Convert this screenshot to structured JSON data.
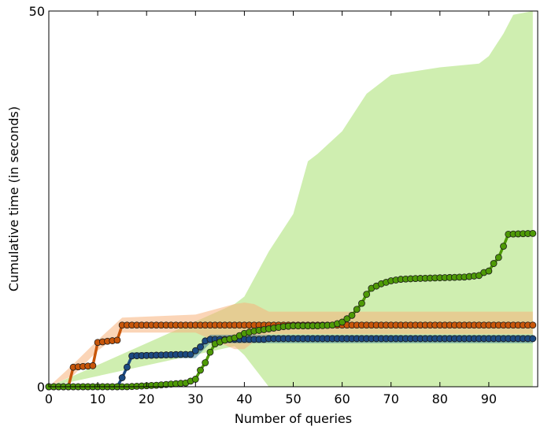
{
  "chart_data": {
    "type": "line",
    "title": "",
    "xlabel": "Number of queries",
    "ylabel": "Cumulative time (in seconds)",
    "xlim": [
      0,
      100
    ],
    "ylim": [
      0,
      50
    ],
    "xticks": [
      0,
      10,
      20,
      30,
      40,
      50,
      60,
      70,
      80,
      90
    ],
    "yticks": [
      0,
      50
    ],
    "grid": false,
    "legend": "none",
    "series": [
      {
        "color": "#c8560a",
        "band_color": "#f7b27c",
        "x": [
          0,
          4,
          5,
          9,
          10,
          14,
          15,
          99
        ],
        "y": [
          0,
          0,
          2.6,
          2.8,
          5.9,
          6.2,
          8.2,
          8.2
        ],
        "band_x": [
          0,
          5,
          10,
          15,
          30,
          38,
          40,
          42,
          45,
          99
        ],
        "band_low": [
          0,
          1.5,
          4.8,
          7.2,
          7.2,
          5.0,
          5.0,
          6.0,
          7.0,
          7.0
        ],
        "band_high": [
          0,
          3.0,
          6.2,
          9.2,
          9.6,
          11.0,
          11.2,
          11.0,
          10.0,
          10.0
        ]
      },
      {
        "color": "#1c4a82",
        "band_color": "#3d7f9a",
        "x": [
          0,
          14,
          15,
          16,
          17,
          27,
          29,
          31,
          32,
          33,
          44,
          45,
          99
        ],
        "y": [
          0,
          0,
          1.2,
          2.6,
          4.1,
          4.3,
          4.3,
          5.3,
          6.1,
          6.3,
          6.3,
          6.4,
          6.4
        ],
        "band_x": [
          0,
          14,
          17,
          30,
          33,
          99
        ],
        "band_low": [
          0,
          0,
          3.8,
          3.8,
          5.8,
          5.8
        ],
        "band_high": [
          0,
          0,
          4.6,
          4.6,
          6.9,
          6.9
        ]
      },
      {
        "color": "#4e9a06",
        "band_color": "#a8e070",
        "x": [
          0,
          16,
          22,
          28,
          30,
          31,
          32,
          33,
          34,
          36,
          38,
          40,
          42,
          44,
          46,
          48,
          50,
          55,
          58,
          60,
          62,
          64,
          65,
          66,
          68,
          70,
          72,
          75,
          80,
          85,
          88,
          89,
          90,
          91,
          92,
          93,
          94,
          99
        ],
        "y": [
          0,
          0,
          0.2,
          0.5,
          1.0,
          2.2,
          3.2,
          4.6,
          5.7,
          6.2,
          6.5,
          7.1,
          7.4,
          7.6,
          7.8,
          8.0,
          8.1,
          8.1,
          8.2,
          8.6,
          9.5,
          11.1,
          12.3,
          13.1,
          13.7,
          14.1,
          14.3,
          14.4,
          14.5,
          14.6,
          14.8,
          15.2,
          15.4,
          16.4,
          17.2,
          18.7,
          20.3,
          20.4
        ],
        "band_x": [
          0,
          38,
          40,
          45,
          50,
          53,
          55,
          60,
          65,
          70,
          80,
          88,
          90,
          93,
          95,
          99
        ],
        "band_low": [
          0,
          5.4,
          4.2,
          0,
          0,
          0,
          0,
          0,
          0,
          0,
          0,
          0,
          0,
          0,
          0,
          0
        ],
        "band_high": [
          0,
          11.0,
          12.0,
          18.0,
          23.0,
          30.0,
          31.0,
          34.0,
          39.0,
          41.5,
          42.5,
          43.0,
          44.0,
          47.0,
          49.5,
          50.0
        ]
      }
    ]
  }
}
